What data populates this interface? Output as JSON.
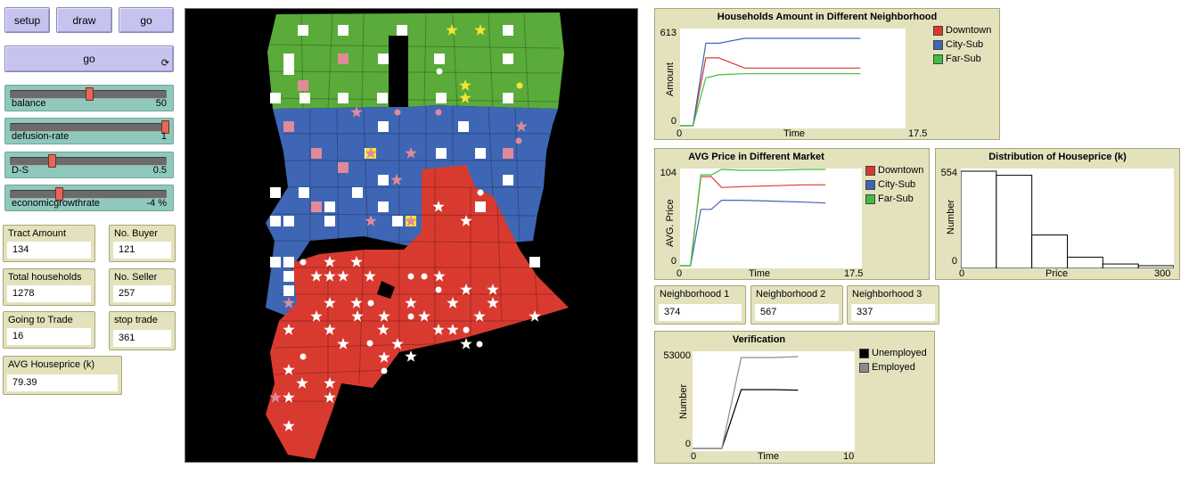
{
  "buttons": {
    "setup": "setup",
    "draw": "draw",
    "go": "go",
    "go_forever": "go",
    "forever_glyph": "⟳"
  },
  "sliders": [
    {
      "label": "balance",
      "value": "50",
      "frac": 0.5
    },
    {
      "label": "defusion-rate",
      "value": "1",
      "frac": 1.0
    },
    {
      "label": "D-S",
      "value": "0.5",
      "frac": 0.25
    },
    {
      "label": "economicgrowthrate",
      "value": "-4 %",
      "frac": 0.3
    }
  ],
  "monitors": {
    "tract_amount": {
      "label": "Tract Amount",
      "value": "134"
    },
    "no_buyer": {
      "label": "No. Buyer",
      "value": "121"
    },
    "total_households": {
      "label": "Total households",
      "value": "1278"
    },
    "no_seller": {
      "label": "No. Seller",
      "value": "257"
    },
    "going_to_trade": {
      "label": "Going to Trade",
      "value": "16"
    },
    "stop_trade": {
      "label": "stop trade",
      "value": "361"
    },
    "avg_houseprice": {
      "label": "AVG Houseprice (k)",
      "value": "79.39"
    },
    "neighborhood1": {
      "label": "Neighborhood 1",
      "value": "374"
    },
    "neighborhood2": {
      "label": "Neighborhood 2",
      "value": "567"
    },
    "neighborhood3": {
      "label": "Neighborhood 3",
      "value": "337"
    }
  },
  "colors": {
    "green_region": "#5aab3a",
    "blue_region": "#3e66b5",
    "red_region": "#d93a2f",
    "downtown": "#d93a2f",
    "city_sub": "#3e66b5",
    "far_sub": "#3fbf3f",
    "pink": "#e08a9a",
    "yellow": "#f3e534"
  },
  "chart_data": [
    {
      "type": "line",
      "title": "Households Amount in Different Neighborhood",
      "xlabel": "Time",
      "ylabel": "Amount",
      "xlim": [
        0,
        17.5
      ],
      "ylim": [
        0,
        613
      ],
      "x_tick_labels": [
        "0",
        "17.5"
      ],
      "y_tick_labels": [
        "0",
        "613"
      ],
      "series": [
        {
          "name": "Downtown",
          "color": "#d93a2f",
          "x": [
            0,
            0.5,
            1,
            2,
            3,
            5,
            8,
            11,
            14
          ],
          "y": [
            0,
            0,
            0,
            440,
            440,
            374,
            374,
            374,
            374
          ]
        },
        {
          "name": "City-Sub",
          "color": "#3e66b5",
          "x": [
            0,
            0.5,
            1,
            2,
            3,
            5,
            8,
            11,
            14
          ],
          "y": [
            0,
            0,
            0,
            535,
            535,
            567,
            567,
            567,
            567
          ]
        },
        {
          "name": "Far-Sub",
          "color": "#3fbf3f",
          "x": [
            0,
            0.5,
            1,
            2,
            3,
            5,
            8,
            11,
            14
          ],
          "y": [
            0,
            0,
            0,
            310,
            330,
            337,
            337,
            337,
            337
          ]
        }
      ]
    },
    {
      "type": "line",
      "title": "AVG Price in Different Market",
      "xlabel": "Time",
      "ylabel": "AVG. Price",
      "xlim": [
        0,
        17.5
      ],
      "ylim": [
        0,
        104
      ],
      "x_tick_labels": [
        "0",
        "17.5"
      ],
      "y_tick_labels": [
        "0",
        "104"
      ],
      "series": [
        {
          "name": "Downtown",
          "color": "#d93a2f",
          "x": [
            0,
            0.5,
            1,
            2,
            3,
            4,
            6,
            9,
            12,
            14
          ],
          "y": [
            0,
            0,
            0,
            98,
            98,
            86,
            87,
            88,
            89,
            89
          ]
        },
        {
          "name": "City-Sub",
          "color": "#3e66b5",
          "x": [
            0,
            0.5,
            1,
            2,
            3,
            4,
            6,
            9,
            12,
            14
          ],
          "y": [
            0,
            0,
            0,
            62,
            62,
            72,
            72,
            71,
            70,
            69
          ]
        },
        {
          "name": "Far-Sub",
          "color": "#3fbf3f",
          "x": [
            0,
            0.5,
            1,
            2,
            3,
            4,
            6,
            9,
            12,
            14
          ],
          "y": [
            0,
            0,
            0,
            100,
            100,
            106,
            105,
            105,
            106,
            106
          ]
        }
      ]
    },
    {
      "type": "bar",
      "title": "Distribution of Houseprice (k)",
      "xlabel": "Price",
      "ylabel": "Number",
      "xlim": [
        0,
        300
      ],
      "ylim": [
        0,
        554
      ],
      "x_tick_labels": [
        "0",
        "300"
      ],
      "y_tick_labels": [
        "0",
        "554"
      ],
      "bin_edges": [
        0,
        50,
        100,
        150,
        200,
        250,
        300
      ],
      "values": [
        554,
        530,
        180,
        50,
        10,
        0
      ]
    },
    {
      "type": "line",
      "title": "Verification",
      "xlabel": "Time",
      "ylabel": "Number",
      "xlim": [
        0,
        10
      ],
      "ylim": [
        0,
        53000
      ],
      "x_tick_labels": [
        "0",
        "10"
      ],
      "y_tick_labels": [
        "0",
        "53000"
      ],
      "series": [
        {
          "name": "Unemployed",
          "color": "#000000",
          "x": [
            0,
            1,
            1.8,
            3,
            5,
            6.5
          ],
          "y": [
            0,
            0,
            0,
            33000,
            33000,
            32700
          ]
        },
        {
          "name": "Employed",
          "color": "#8a8a8a",
          "x": [
            0,
            1,
            1.8,
            3,
            5,
            6.5
          ],
          "y": [
            0,
            0,
            0,
            51000,
            51000,
            51500
          ]
        }
      ]
    }
  ]
}
